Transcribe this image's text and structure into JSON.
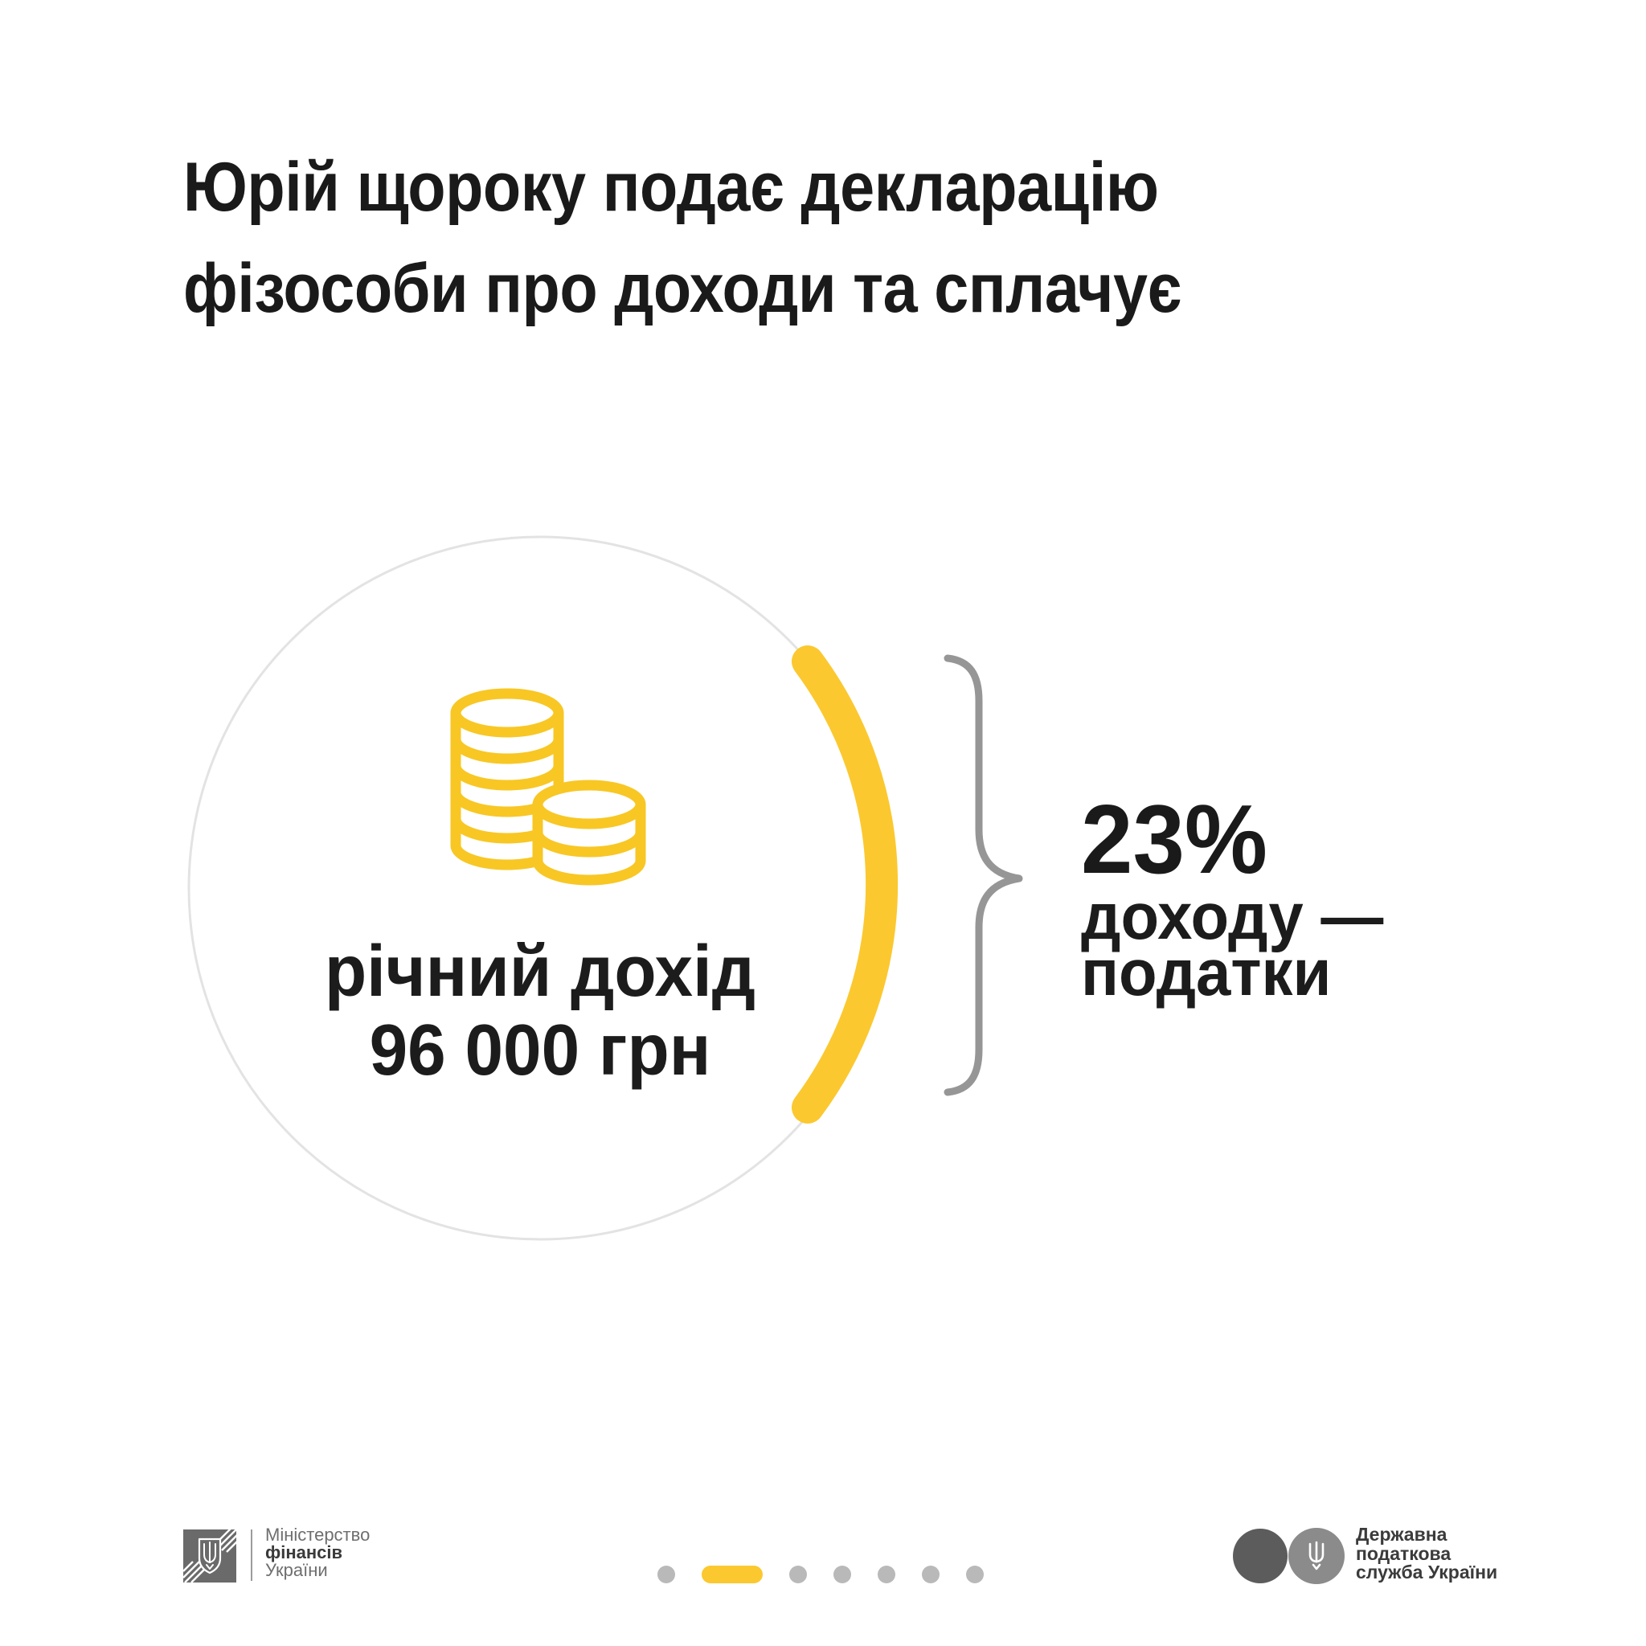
{
  "title": {
    "line1": "Юрій щороку подає декларацію",
    "line2": "фізособи про доходи та сплачує"
  },
  "income_circle": {
    "icon": "coins-icon",
    "label_line1": "річний дохід",
    "label_line2": "96 000 грн"
  },
  "tax_callout": {
    "percent": "23%",
    "line1": "доходу —",
    "line2": "податки"
  },
  "pagination": {
    "total": 7,
    "active_index": 1
  },
  "footer": {
    "minfin": {
      "emblem": "trident-shield-icon",
      "line1": "Міністерство",
      "line2": "фінансів",
      "line3": "України"
    },
    "sts": {
      "emblem": "trident-circles-icon",
      "line1": "Державна",
      "line2": "податкова",
      "line3": "служба України"
    }
  },
  "colors": {
    "accent_yellow": "#fbc82f",
    "coin_yellow": "#f8c724",
    "title_text": "#1a1a1a",
    "circle_outline": "#e3e3e3",
    "brace_gray": "#969696",
    "inactive_dot_gray": "#b9b9b9",
    "minfin_square_gray": "#6a6a6a",
    "sts_circle_dark": "#5c5c5c",
    "sts_circle_light": "#8b8b8b",
    "footer_text_gray": "#6e6e6e",
    "footer_text_dark": "#3a3a3a",
    "background": "#ffffff"
  }
}
